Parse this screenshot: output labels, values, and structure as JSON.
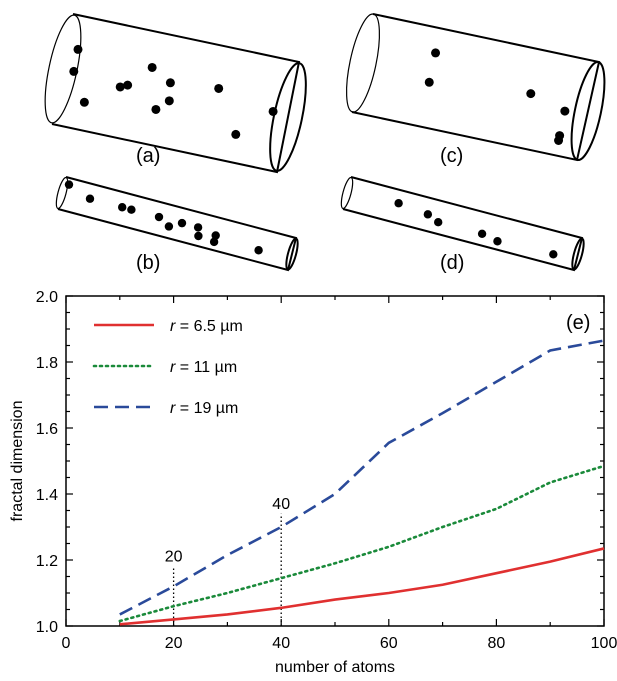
{
  "panels": {
    "a": {
      "label": "(a)",
      "atoms": [
        [
          0.05,
          0.3
        ],
        [
          0.05,
          0.5
        ],
        [
          0.12,
          0.75
        ],
        [
          0.26,
          0.55
        ],
        [
          0.29,
          0.52
        ],
        [
          0.38,
          0.32
        ],
        [
          0.43,
          0.68
        ],
        [
          0.48,
          0.58
        ],
        [
          0.47,
          0.42
        ],
        [
          0.68,
          0.38
        ],
        [
          0.79,
          0.75
        ],
        [
          0.93,
          0.48
        ]
      ]
    },
    "b": {
      "label": "(b)",
      "atoms": [
        [
          0.02,
          0.2
        ],
        [
          0.12,
          0.45
        ],
        [
          0.26,
          0.45
        ],
        [
          0.3,
          0.45
        ],
        [
          0.42,
          0.45
        ],
        [
          0.47,
          0.65
        ],
        [
          0.52,
          0.45
        ],
        [
          0.59,
          0.45
        ],
        [
          0.6,
          0.7
        ],
        [
          0.67,
          0.55
        ],
        [
          0.67,
          0.75
        ],
        [
          0.86,
          0.65
        ]
      ]
    },
    "c": {
      "label": "(c)",
      "atoms": [
        [
          0.3,
          0.25
        ],
        [
          0.3,
          0.55
        ],
        [
          0.74,
          0.45
        ],
        [
          0.9,
          0.55
        ],
        [
          0.9,
          0.8
        ],
        [
          0.9,
          0.85
        ]
      ]
    },
    "d": {
      "label": "(d)",
      "atoms": [
        [
          0.22,
          0.4
        ],
        [
          0.35,
          0.5
        ],
        [
          0.4,
          0.65
        ],
        [
          0.59,
          0.65
        ],
        [
          0.66,
          0.75
        ],
        [
          0.9,
          0.7
        ]
      ]
    },
    "e": {
      "label": "(e)"
    }
  },
  "annotations": [
    {
      "text": "20",
      "x": 20,
      "y_top": 1.18
    },
    {
      "text": "40",
      "x": 40,
      "y_top": 1.34
    }
  ],
  "chart_data": {
    "type": "line",
    "xlabel": "number of atoms",
    "ylabel": "fractal dimension",
    "xlim": [
      0,
      100
    ],
    "ylim": [
      1.0,
      2.0
    ],
    "xticks": [
      0,
      20,
      40,
      60,
      80,
      100
    ],
    "yticks": [
      1.0,
      1.2,
      1.4,
      1.6,
      1.8,
      2.0
    ],
    "legend_position": "top-left",
    "series": [
      {
        "name_prefix": "r",
        "name_suffix": " = 6.5 µm",
        "color": "#e03030",
        "dash": "solid",
        "x": [
          10,
          20,
          30,
          40,
          50,
          60,
          70,
          80,
          90,
          100
        ],
        "y": [
          1.005,
          1.02,
          1.035,
          1.055,
          1.08,
          1.1,
          1.125,
          1.16,
          1.195,
          1.235
        ]
      },
      {
        "name_prefix": "r",
        "name_suffix": " = 11 µm",
        "color": "#1a8a3a",
        "dash": "dotted",
        "x": [
          10,
          20,
          30,
          40,
          50,
          60,
          70,
          80,
          90,
          100
        ],
        "y": [
          1.015,
          1.06,
          1.1,
          1.145,
          1.19,
          1.24,
          1.3,
          1.355,
          1.435,
          1.485
        ]
      },
      {
        "name_prefix": "r",
        "name_suffix": " = 19 µm",
        "color": "#2a4a9a",
        "dash": "dashed",
        "x": [
          10,
          20,
          30,
          40,
          50,
          60,
          70,
          80,
          90,
          100
        ],
        "y": [
          1.035,
          1.12,
          1.215,
          1.3,
          1.4,
          1.555,
          1.645,
          1.74,
          1.835,
          1.865
        ]
      }
    ]
  }
}
